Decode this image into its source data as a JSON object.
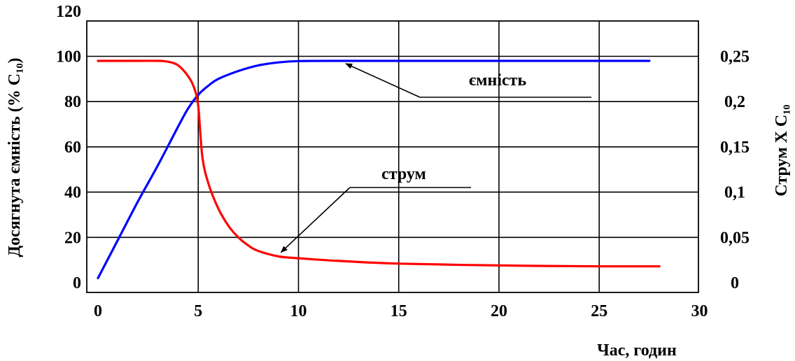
{
  "chart_data": {
    "type": "line",
    "xlabel": "Час, годин",
    "ylabel_left": "Досягнута ємність (% C₁₀)",
    "ylabel_right": "Струм X C₁₀",
    "xlim": [
      0,
      30
    ],
    "ylim_left": [
      0,
      120
    ],
    "ylim_right": [
      0,
      0.3
    ],
    "x_ticks": [
      "0",
      "5",
      "10",
      "15",
      "20",
      "25",
      "30"
    ],
    "y_ticks_left": [
      "0",
      "20",
      "40",
      "60",
      "80",
      "100",
      "120"
    ],
    "y_ticks_right": [
      "0",
      "0,05",
      "0,1",
      "0,15",
      "0,2",
      "0,25"
    ],
    "grid": true,
    "series": [
      {
        "name": "ємність",
        "axis": "left",
        "color": "#0000ff",
        "x": [
          0,
          1,
          2,
          3,
          4,
          4.5,
          5,
          5.5,
          6,
          7,
          8,
          9,
          10,
          12,
          15,
          20,
          25,
          27.5
        ],
        "y": [
          2,
          19,
          36,
          52,
          69,
          77,
          83,
          87,
          90,
          93.5,
          96,
          97.3,
          97.9,
          98,
          98,
          98,
          98,
          98
        ]
      },
      {
        "name": "струм",
        "axis": "right",
        "color": "#ff0000",
        "x": [
          0,
          1,
          2,
          3,
          3.5,
          4,
          4.5,
          4.8,
          5,
          5.2,
          5.5,
          6,
          6.5,
          7,
          7.5,
          8,
          9,
          10,
          12,
          15,
          20,
          25,
          28
        ],
        "y": [
          0.245,
          0.245,
          0.245,
          0.245,
          0.244,
          0.24,
          0.228,
          0.215,
          0.195,
          0.14,
          0.11,
          0.082,
          0.063,
          0.05,
          0.041,
          0.035,
          0.029,
          0.027,
          0.024,
          0.021,
          0.019,
          0.018,
          0.018
        ]
      }
    ],
    "annotations": [
      {
        "text": "ємність",
        "target_series": "ємність",
        "target_x": 12.5,
        "target_y": 98
      },
      {
        "text": "струм",
        "target_series": "струм",
        "target_x": 9.2,
        "target_y": 0.032
      }
    ]
  }
}
